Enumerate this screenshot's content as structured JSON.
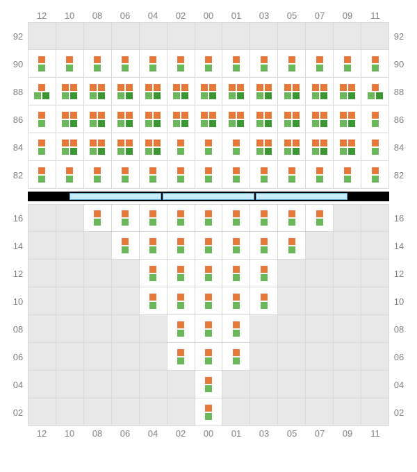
{
  "colors": {
    "orange": "#e87838",
    "green": "#6ab85a",
    "darkgreen": "#3a9830",
    "empty_bg": "#e8e8e8",
    "filled_bg": "#ffffff",
    "grid_line": "#d8d8d8",
    "label": "#808080",
    "sep_fill": "#c8ecf8",
    "sep_border": "#5aa8d8",
    "sep_bg": "#000000"
  },
  "x_labels": [
    "12",
    "10",
    "08",
    "06",
    "04",
    "02",
    "00",
    "01",
    "03",
    "05",
    "07",
    "09",
    "11"
  ],
  "top_panel": {
    "y_labels": [
      "92",
      "90",
      "88",
      "86",
      "84",
      "82"
    ],
    "rows": [
      [
        null,
        null,
        null,
        null,
        null,
        null,
        null,
        null,
        null,
        null,
        null,
        null,
        null
      ],
      [
        [
          "o",
          "g"
        ],
        [
          "o",
          "g"
        ],
        [
          "o",
          "g"
        ],
        [
          "o",
          "g"
        ],
        [
          "o",
          "g"
        ],
        [
          "o",
          "g"
        ],
        [
          "o",
          "g"
        ],
        [
          "o",
          "g"
        ],
        [
          "o",
          "g"
        ],
        [
          "o",
          "g"
        ],
        [
          "o",
          "g"
        ],
        [
          "o",
          "g"
        ],
        [
          "o",
          "g"
        ]
      ],
      [
        [
          "o",
          "gd"
        ],
        [
          "oo",
          "gd"
        ],
        [
          "oo",
          "gd"
        ],
        [
          "oo",
          "gd"
        ],
        [
          "oo",
          "gd"
        ],
        [
          "oo",
          "gd"
        ],
        [
          "oo",
          "gd"
        ],
        [
          "oo",
          "gd"
        ],
        [
          "oo",
          "gd"
        ],
        [
          "oo",
          "gd"
        ],
        [
          "oo",
          "gd"
        ],
        [
          "oo",
          "gd"
        ],
        [
          "o",
          "gd"
        ]
      ],
      [
        [
          "o",
          "g"
        ],
        [
          "oo",
          "gd"
        ],
        [
          "oo",
          "gd"
        ],
        [
          "oo",
          "gd"
        ],
        [
          "oo",
          "gd"
        ],
        [
          "oo",
          "gd"
        ],
        [
          "oo",
          "gd"
        ],
        [
          "oo",
          "gd"
        ],
        [
          "oo",
          "gd"
        ],
        [
          "oo",
          "gd"
        ],
        [
          "oo",
          "gd"
        ],
        [
          "oo",
          "gd"
        ],
        [
          "o",
          "g"
        ]
      ],
      [
        [
          "o",
          "g"
        ],
        [
          "oo",
          "gd"
        ],
        [
          "oo",
          "gd"
        ],
        [
          "oo",
          "gd"
        ],
        [
          "oo",
          "gd"
        ],
        [
          "o",
          "g"
        ],
        [
          "o",
          "g"
        ],
        [
          "o",
          "g"
        ],
        [
          "oo",
          "gd"
        ],
        [
          "oo",
          "gd"
        ],
        [
          "oo",
          "gd"
        ],
        [
          "oo",
          "gd"
        ],
        [
          "o",
          "g"
        ]
      ],
      [
        [
          "o",
          "g"
        ],
        [
          "o",
          "g"
        ],
        [
          "o",
          "g"
        ],
        [
          "o",
          "g"
        ],
        [
          "o",
          "g"
        ],
        [
          "o",
          "g"
        ],
        [
          "o",
          "g"
        ],
        [
          "o",
          "g"
        ],
        [
          "o",
          "g"
        ],
        [
          "o",
          "g"
        ],
        [
          "o",
          "g"
        ],
        [
          "o",
          "g"
        ],
        [
          "o",
          "g"
        ]
      ]
    ]
  },
  "bottom_panel": {
    "y_labels": [
      "16",
      "14",
      "12",
      "10",
      "08",
      "06",
      "04",
      "02"
    ],
    "rows": [
      [
        null,
        null,
        [
          "o",
          "g"
        ],
        [
          "o",
          "g"
        ],
        [
          "o",
          "g"
        ],
        [
          "o",
          "g"
        ],
        [
          "o",
          "g"
        ],
        [
          "o",
          "g"
        ],
        [
          "o",
          "g"
        ],
        [
          "o",
          "g"
        ],
        [
          "o",
          "g"
        ],
        null,
        null
      ],
      [
        null,
        null,
        null,
        [
          "o",
          "g"
        ],
        [
          "o",
          "g"
        ],
        [
          "o",
          "g"
        ],
        [
          "o",
          "g"
        ],
        [
          "o",
          "g"
        ],
        [
          "o",
          "g"
        ],
        [
          "o",
          "g"
        ],
        null,
        null,
        null
      ],
      [
        null,
        null,
        null,
        null,
        [
          "o",
          "g"
        ],
        [
          "o",
          "g"
        ],
        [
          "o",
          "g"
        ],
        [
          "o",
          "g"
        ],
        [
          "o",
          "g"
        ],
        null,
        null,
        null,
        null
      ],
      [
        null,
        null,
        null,
        null,
        [
          "o",
          "g"
        ],
        [
          "o",
          "g"
        ],
        [
          "o",
          "g"
        ],
        [
          "o",
          "g"
        ],
        [
          "o",
          "g"
        ],
        null,
        null,
        null,
        null
      ],
      [
        null,
        null,
        null,
        null,
        null,
        [
          "o",
          "g"
        ],
        [
          "o",
          "g"
        ],
        [
          "o",
          "g"
        ],
        null,
        null,
        null,
        null,
        null
      ],
      [
        null,
        null,
        null,
        null,
        null,
        [
          "o",
          "g"
        ],
        [
          "o",
          "g"
        ],
        [
          "o",
          "g"
        ],
        null,
        null,
        null,
        null,
        null
      ],
      [
        null,
        null,
        null,
        null,
        null,
        null,
        [
          "o",
          "g"
        ],
        null,
        null,
        null,
        null,
        null,
        null
      ],
      [
        null,
        null,
        null,
        null,
        null,
        null,
        [
          "o",
          "g"
        ],
        null,
        null,
        null,
        null,
        null,
        null
      ]
    ]
  },
  "separator_segments": 3
}
